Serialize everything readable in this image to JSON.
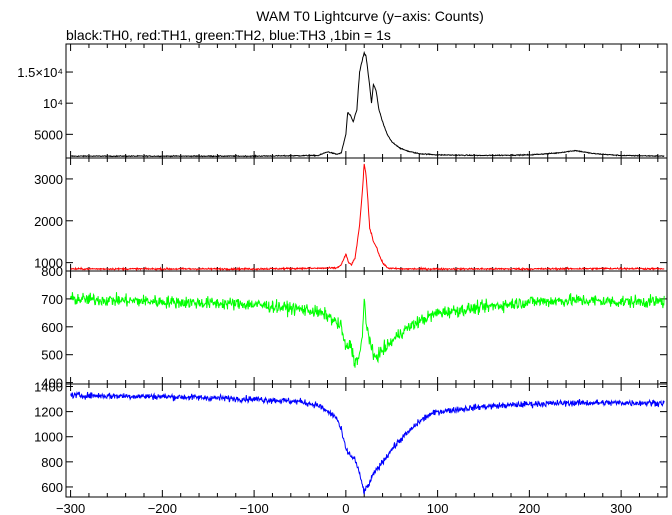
{
  "title": "WAM T0 Lightcurve (y−axis: Counts)",
  "subtitle": "black:TH0, red:TH1, green:TH2, blue:TH3 ,1bin = 1s",
  "chart_data": [
    {
      "type": "line",
      "panel": "TH0",
      "color": "#000000",
      "xlim": [
        -305,
        350
      ],
      "ylim": [
        1200,
        19500
      ],
      "yticks": [
        5000,
        10000,
        15000
      ],
      "ytick_labels": [
        "5000",
        "10⁴",
        "1.5×10⁴"
      ],
      "x": [
        -300,
        -200,
        -100,
        -30,
        -20,
        -10,
        -5,
        0,
        2,
        5,
        8,
        12,
        15,
        18,
        20,
        22,
        25,
        28,
        30,
        33,
        36,
        40,
        45,
        50,
        60,
        70,
        80,
        100,
        150,
        200,
        230,
        250,
        270,
        300,
        350
      ],
      "values": [
        1500,
        1500,
        1500,
        1600,
        2200,
        1800,
        2000,
        5000,
        8500,
        8000,
        7000,
        9000,
        15000,
        17000,
        18000,
        17500,
        14000,
        10000,
        13000,
        12000,
        9000,
        7000,
        5000,
        3800,
        2700,
        2200,
        1900,
        1700,
        1600,
        1700,
        2000,
        2400,
        1900,
        1600,
        1500
      ],
      "noise": 70
    },
    {
      "type": "line",
      "panel": "TH1",
      "color": "#ff0000",
      "xlim": [
        -305,
        350
      ],
      "ylim": [
        800,
        3500
      ],
      "yticks": [
        800,
        1000,
        2000,
        3000
      ],
      "ytick_labels": [
        "800",
        "1000",
        "2000",
        "3000"
      ],
      "x": [
        -300,
        -200,
        -100,
        -10,
        -5,
        0,
        3,
        6,
        10,
        15,
        18,
        20,
        22,
        24,
        26,
        28,
        30,
        33,
        36,
        40,
        45,
        50,
        60,
        100,
        200,
        300,
        350
      ],
      "values": [
        850,
        850,
        850,
        870,
        950,
        1200,
        1000,
        950,
        1100,
        1900,
        2700,
        3350,
        3100,
        2500,
        1800,
        1700,
        1500,
        1400,
        1200,
        1000,
        880,
        860,
        850,
        850,
        850,
        860,
        850
      ],
      "noise": 20
    },
    {
      "type": "line",
      "panel": "TH2",
      "color": "#00ff00",
      "xlim": [
        -305,
        350
      ],
      "ylim": [
        395,
        800
      ],
      "yticks": [
        400,
        500,
        600,
        700
      ],
      "ytick_labels": [
        "400",
        "500",
        "600",
        "700"
      ],
      "x": [
        -300,
        -200,
        -100,
        -40,
        -20,
        -5,
        0,
        5,
        10,
        15,
        18,
        20,
        22,
        25,
        30,
        35,
        45,
        60,
        80,
        100,
        150,
        200,
        250,
        300,
        350
      ],
      "values": [
        700,
        690,
        680,
        660,
        640,
        600,
        520,
        540,
        470,
        500,
        560,
        700,
        620,
        570,
        490,
        500,
        530,
        580,
        620,
        650,
        670,
        690,
        695,
        690,
        690
      ],
      "noise": 22
    },
    {
      "type": "line",
      "panel": "TH3",
      "color": "#0000ff",
      "xlim": [
        -305,
        350
      ],
      "ylim": [
        520,
        1420
      ],
      "yticks": [
        600,
        800,
        1000,
        1200,
        1400
      ],
      "ytick_labels": [
        "600",
        "800",
        "1000",
        "1200",
        "1400"
      ],
      "x": [
        -300,
        -200,
        -100,
        -50,
        -30,
        -20,
        -10,
        -5,
        0,
        5,
        10,
        15,
        20,
        25,
        30,
        40,
        50,
        60,
        70,
        80,
        90,
        100,
        150,
        200,
        250,
        300,
        350
      ],
      "values": [
        1330,
        1320,
        1300,
        1280,
        1250,
        1200,
        1150,
        1050,
        900,
        850,
        820,
        700,
        560,
        620,
        700,
        800,
        900,
        980,
        1050,
        1120,
        1170,
        1200,
        1240,
        1260,
        1270,
        1270,
        1270
      ],
      "noise": 25
    }
  ],
  "x_axis": {
    "ticks": [
      -300,
      -200,
      -100,
      0,
      100,
      200,
      300
    ],
    "tick_labels": [
      "−300",
      "−200",
      "−100",
      "0",
      "100",
      "200",
      "300"
    ],
    "minor_step": 20
  }
}
